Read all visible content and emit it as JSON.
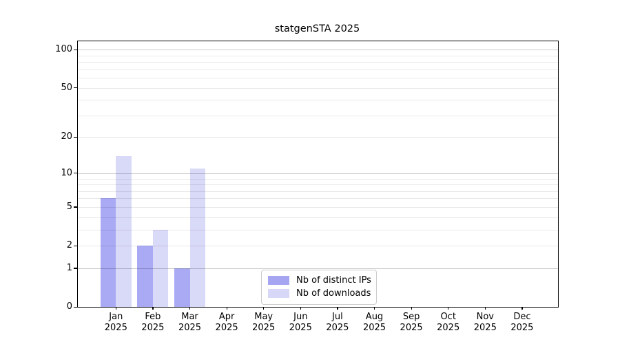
{
  "figure": {
    "background": "#ffffff"
  },
  "chart_data": {
    "type": "bar",
    "title": "statgenSTA 2025",
    "categories": [
      "Jan",
      "Feb",
      "Mar",
      "Apr",
      "May",
      "Jun",
      "Jul",
      "Aug",
      "Sep",
      "Oct",
      "Nov",
      "Dec"
    ],
    "x_year_label": "2025",
    "series": [
      {
        "name": "Nb of distinct IPs",
        "legend_color": "#a5a5f2",
        "bar_fill": "rgba(123,123,238,0.65)",
        "values": [
          6,
          2,
          1,
          0,
          0,
          0,
          0,
          0,
          0,
          0,
          0,
          0
        ]
      },
      {
        "name": "Nb of downloads",
        "legend_color": "#d7d7f8",
        "bar_fill": "rgba(146,146,235,0.35)",
        "values": [
          14,
          3,
          11,
          0,
          0,
          0,
          0,
          0,
          0,
          0,
          0,
          0
        ]
      }
    ],
    "yscale": "log1p",
    "yticks": [
      0,
      1,
      2,
      5,
      10,
      20,
      50,
      100
    ],
    "y_major_gridlines": [
      1,
      10,
      100
    ],
    "y_minor_gridlines": [
      2,
      3,
      4,
      5,
      6,
      7,
      8,
      9,
      20,
      30,
      40,
      50,
      60,
      70,
      80,
      90
    ],
    "ylim": [
      0,
      116
    ],
    "grid": true,
    "legend_position": "lower-center",
    "spine_color": "#000000",
    "grid_major_color": "#c9c9c9",
    "grid_minor_color": "#ebebeb"
  }
}
